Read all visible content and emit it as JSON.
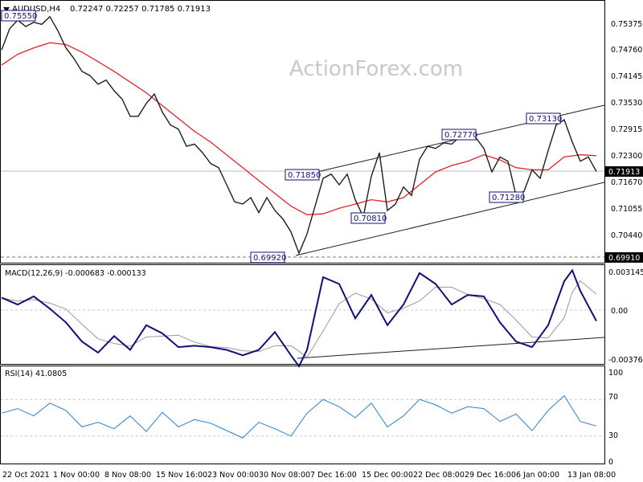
{
  "header": {
    "symbol": "AUDUSD,H4",
    "ohlc": "0.72247 0.72257 0.71785 0.71913"
  },
  "watermark": "ActionForex.com",
  "colors": {
    "price": "#1e1e1e",
    "ma": "#e8202a",
    "macd": "#10107a",
    "signal": "#9a9a9a",
    "rsi": "#2a7fd0",
    "channel": "#1e1e1e",
    "grid": "#c8c8c8",
    "current_price_tag": "#000000"
  },
  "price_axis": {
    "ticks": [
      "0.75375",
      "0.74760",
      "0.74145",
      "0.73530",
      "0.72915",
      "0.72300",
      "0.71670",
      "0.71055",
      "0.70440"
    ],
    "current_price": "0.71913",
    "bottom_value": "0.69910"
  },
  "annotations": [
    "0.75550",
    "0.71850",
    "0.69920",
    "0.70810",
    "0.72770",
    "0.71280",
    "0.73130"
  ],
  "macd": {
    "label": "MACD(12,26,9) -0.000683 -0.000133",
    "axis_ticks": [
      "0.003145",
      "0.00",
      "-0.003768"
    ]
  },
  "rsi": {
    "label": "RSI(14) 41.0805",
    "axis_ticks": [
      "100",
      "70",
      "30",
      "0"
    ],
    "overbought": 70,
    "oversold": 30
  },
  "x_axis": {
    "labels": [
      "22 Oct 2021",
      "1 Nov 00:00",
      "8 Nov 08:00",
      "15 Nov 16:00",
      "23 Nov 00:00",
      "30 Nov 08:00",
      "7 Dec 16:00",
      "15 Dec 00:00",
      "22 Dec 08:00",
      "29 Dec 16:00",
      "6 Jan 00:00",
      "13 Jan 08:00"
    ]
  },
  "chart_data": {
    "type": "line",
    "series": [
      {
        "name": "AUDUSD,H4",
        "x": [
          0,
          10,
          20,
          30,
          40,
          50,
          60,
          70,
          80,
          90,
          100,
          110,
          120,
          130,
          140,
          150,
          160,
          170,
          180,
          190,
          200,
          210,
          220,
          230,
          240,
          250,
          260,
          270,
          280,
          290,
          300,
          310,
          320,
          330,
          340,
          350,
          360,
          370,
          380,
          390,
          400,
          410,
          420,
          430,
          440,
          450,
          460,
          470,
          480,
          490,
          500,
          510,
          520,
          530,
          540,
          550,
          560,
          570,
          580,
          590,
          600,
          610,
          620,
          630,
          640,
          650,
          660,
          670,
          680,
          690,
          700,
          710,
          720,
          730,
          740
        ],
        "values": [
          0.7475,
          0.7525,
          0.7545,
          0.753,
          0.754,
          0.7535,
          0.7553,
          0.752,
          0.748,
          0.7455,
          0.7425,
          0.7415,
          0.7395,
          0.7405,
          0.738,
          0.736,
          0.732,
          0.732,
          0.735,
          0.7372,
          0.733,
          0.73,
          0.729,
          0.725,
          0.7255,
          0.7235,
          0.721,
          0.72,
          0.716,
          0.712,
          0.7115,
          0.713,
          0.7095,
          0.713,
          0.71,
          0.708,
          0.705,
          0.7,
          0.7045,
          0.711,
          0.7175,
          0.7185,
          0.716,
          0.7185,
          0.7125,
          0.7085,
          0.718,
          0.7235,
          0.71,
          0.7115,
          0.7155,
          0.7135,
          0.722,
          0.725,
          0.7245,
          0.7258,
          0.7255,
          0.7272,
          0.7268,
          0.727,
          0.7245,
          0.719,
          0.7225,
          0.7215,
          0.7135,
          0.7145,
          0.7195,
          0.7175,
          0.724,
          0.73,
          0.7312,
          0.726,
          0.7215,
          0.7225,
          0.7191
        ]
      },
      {
        "name": "",
        "x": [
          0,
          20,
          40,
          60,
          80,
          100,
          120,
          140,
          160,
          180,
          200,
          220,
          240,
          260,
          280,
          300,
          320,
          340,
          360,
          380,
          400,
          420,
          440,
          460,
          480,
          500,
          520,
          540,
          560,
          580,
          600,
          620,
          640,
          660,
          680,
          700,
          720,
          740
        ],
        "values": [
          0.744,
          0.7465,
          0.748,
          0.7492,
          0.7488,
          0.747,
          0.7448,
          0.7425,
          0.74,
          0.7375,
          0.7345,
          0.7315,
          0.7285,
          0.726,
          0.723,
          0.72,
          0.717,
          0.714,
          0.711,
          0.709,
          0.7092,
          0.7105,
          0.7115,
          0.7125,
          0.712,
          0.713,
          0.716,
          0.719,
          0.7205,
          0.7215,
          0.723,
          0.7218,
          0.72,
          0.7195,
          0.7195,
          0.7225,
          0.723,
          0.7228
        ]
      }
    ],
    "macd": {
      "x": [
        0,
        20,
        40,
        60,
        80,
        100,
        120,
        140,
        160,
        180,
        200,
        220,
        240,
        260,
        280,
        300,
        320,
        340,
        360,
        370,
        380,
        400,
        420,
        440,
        460,
        480,
        500,
        520,
        540,
        560,
        580,
        600,
        620,
        640,
        660,
        680,
        700,
        710,
        720,
        740
      ],
      "macd": [
        0.001,
        0.0005,
        0.0011,
        0.0002,
        -0.0008,
        -0.0022,
        -0.003,
        -0.0018,
        -0.0028,
        -0.001,
        -0.0016,
        -0.0026,
        -0.0025,
        -0.0026,
        -0.0028,
        -0.0032,
        -0.0028,
        -0.0015,
        -0.0032,
        -0.004,
        -0.0028,
        0.0025,
        0.002,
        -0.0005,
        0.0012,
        -0.001,
        0.0005,
        0.0028,
        0.002,
        0.0005,
        0.0012,
        0.0011,
        -0.0008,
        -0.0022,
        -0.0026,
        -0.001,
        0.0022,
        0.003,
        0.0015,
        -0.0007
      ],
      "ylim": [
        -0.003768,
        0.003145
      ]
    },
    "rsi": {
      "x": [
        0,
        20,
        40,
        60,
        80,
        100,
        120,
        140,
        160,
        180,
        200,
        220,
        240,
        260,
        280,
        300,
        320,
        340,
        360,
        380,
        400,
        420,
        440,
        460,
        480,
        500,
        520,
        540,
        560,
        580,
        600,
        620,
        640,
        660,
        680,
        700,
        720,
        740
      ],
      "values": [
        55,
        60,
        52,
        66,
        58,
        40,
        45,
        38,
        52,
        35,
        56,
        40,
        48,
        44,
        36,
        28,
        45,
        38,
        30,
        55,
        70,
        62,
        50,
        66,
        40,
        52,
        70,
        64,
        55,
        62,
        60,
        46,
        54,
        36,
        58,
        74,
        46,
        41
      ],
      "ylim": [
        0,
        100
      ]
    }
  }
}
